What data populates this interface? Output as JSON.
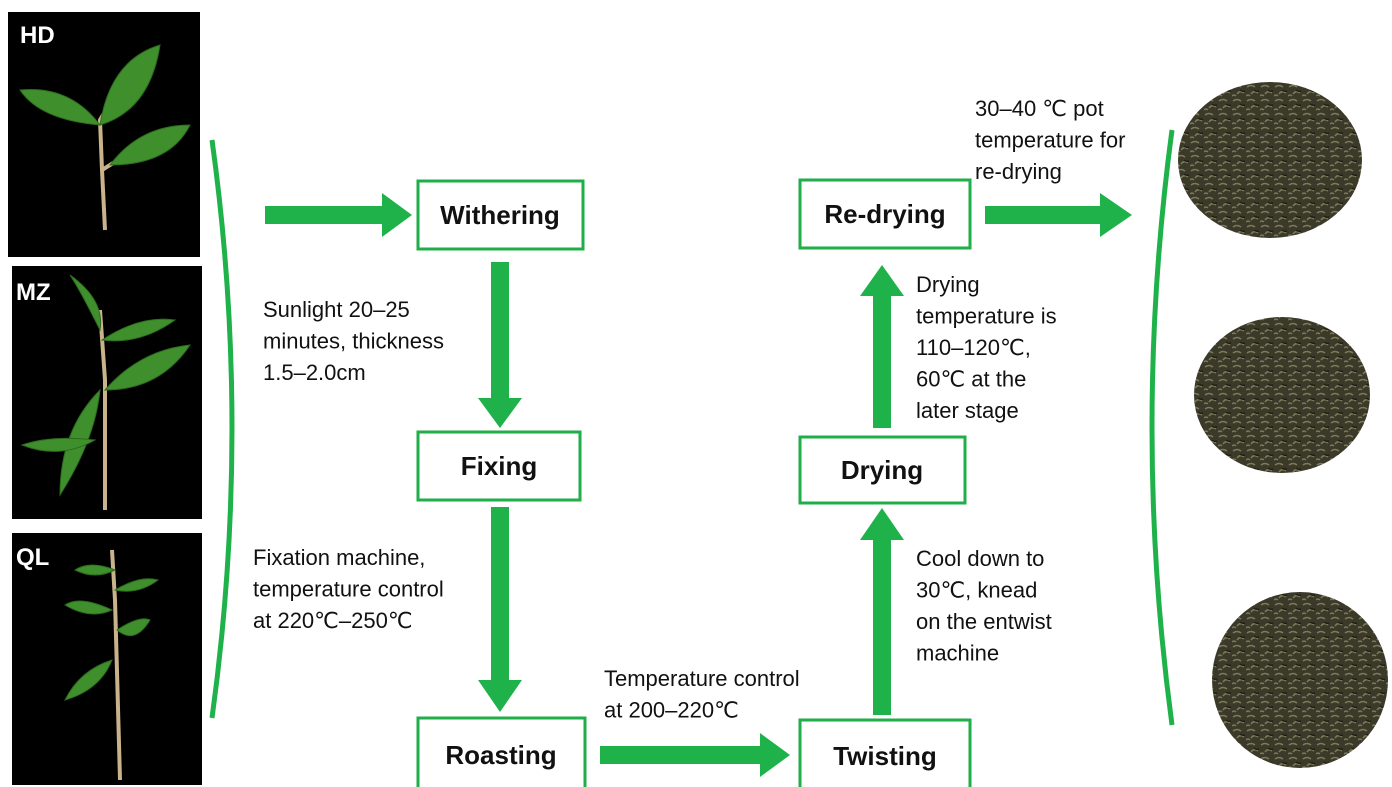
{
  "photos": [
    {
      "label": "HD"
    },
    {
      "label": "MZ"
    },
    {
      "label": "QL"
    }
  ],
  "steps": [
    {
      "label": "Withering"
    },
    {
      "label": "Fixing"
    },
    {
      "label": "Roasting"
    },
    {
      "label": "Twisting"
    },
    {
      "label": "Drying"
    },
    {
      "label": "Re-drying"
    }
  ],
  "notes": [
    {
      "lines": [
        "30–40 ℃ pot",
        "temperature for",
        "re-drying"
      ]
    },
    {
      "lines": [
        "Sunlight 20–25",
        "minutes, thickness",
        "1.5–2.0cm"
      ]
    },
    {
      "lines": [
        "Fixation machine,",
        "temperature control",
        "at 220℃–250℃"
      ]
    },
    {
      "lines": [
        "Temperature control",
        "at 200–220℃"
      ]
    },
    {
      "lines": [
        "Drying",
        "temperature is",
        "110–120℃,",
        "60℃ at the",
        "later stage"
      ]
    },
    {
      "lines": [
        "Cool down to",
        "30℃, knead",
        "on the entwist",
        "machine"
      ]
    }
  ]
}
